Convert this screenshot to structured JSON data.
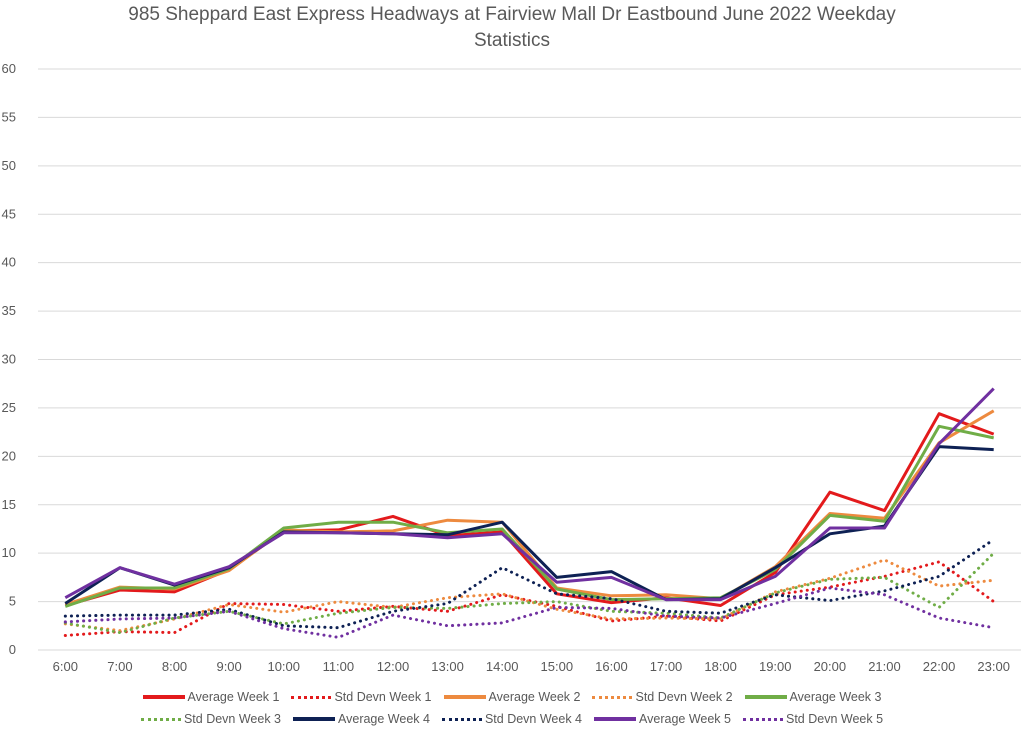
{
  "chart_data": {
    "type": "line",
    "title": "985 Sheppard East Express Headways at Fairview Mall Dr Eastbound June 2022 Weekday Statistics",
    "title_lines": [
      "985 Sheppard East Express Headways at Fairview Mall Dr Eastbound June 2022 Weekday",
      "Statistics"
    ],
    "xlabel": "",
    "ylabel": "",
    "ylim": [
      0,
      60
    ],
    "yticks": [
      0,
      5,
      10,
      15,
      20,
      25,
      30,
      35,
      40,
      45,
      50,
      55,
      60
    ],
    "grid": true,
    "legend_position": "bottom",
    "categories": [
      "6:00",
      "7:00",
      "8:00",
      "9:00",
      "10:00",
      "11:00",
      "12:00",
      "13:00",
      "14:00",
      "15:00",
      "16:00",
      "17:00",
      "18:00",
      "19:00",
      "20:00",
      "21:00",
      "22:00",
      "23:00"
    ],
    "series": [
      {
        "name": "Average Week 1",
        "color": "#e31a1c",
        "style": "solid",
        "values": [
          4.6,
          6.2,
          6.0,
          8.3,
          12.3,
          12.4,
          13.8,
          11.8,
          12.2,
          5.8,
          4.9,
          5.4,
          4.6,
          8.0,
          16.3,
          14.4,
          24.4,
          22.3
        ]
      },
      {
        "name": "Std Devn Week 1",
        "color": "#e31a1c",
        "style": "dotted",
        "values": [
          1.5,
          1.9,
          1.8,
          4.8,
          4.7,
          4.0,
          4.5,
          4.0,
          5.7,
          4.5,
          3.0,
          3.5,
          3.0,
          5.7,
          6.5,
          7.6,
          9.1,
          5.0
        ]
      },
      {
        "name": "Average Week 2",
        "color": "#ed8a3f",
        "style": "solid",
        "values": [
          4.7,
          6.5,
          6.3,
          8.2,
          12.4,
          12.2,
          12.3,
          13.4,
          13.2,
          6.4,
          5.6,
          5.7,
          5.3,
          8.6,
          14.1,
          13.6,
          21.4,
          24.7
        ]
      },
      {
        "name": "Std Devn Week 2",
        "color": "#ed8a3f",
        "style": "dotted",
        "values": [
          2.7,
          2.0,
          3.2,
          4.7,
          3.9,
          5.0,
          4.4,
          5.4,
          5.8,
          4.2,
          3.2,
          3.3,
          3.2,
          6.0,
          7.4,
          9.3,
          6.6,
          7.2
        ]
      },
      {
        "name": "Average Week 3",
        "color": "#70ad47",
        "style": "solid",
        "values": [
          4.5,
          6.4,
          6.4,
          8.4,
          12.6,
          13.2,
          13.2,
          12.1,
          12.5,
          6.3,
          5.2,
          5.3,
          5.4,
          8.3,
          13.9,
          13.3,
          23.1,
          21.9
        ]
      },
      {
        "name": "Std Devn Week 3",
        "color": "#70ad47",
        "style": "dotted",
        "values": [
          2.8,
          1.8,
          3.3,
          4.0,
          2.7,
          3.8,
          4.4,
          4.3,
          4.8,
          5.0,
          4.0,
          3.8,
          3.3,
          5.9,
          7.3,
          7.5,
          4.4,
          10.0
        ]
      },
      {
        "name": "Average Week 4",
        "color": "#0e2154",
        "style": "solid",
        "values": [
          4.8,
          8.5,
          6.7,
          8.5,
          12.2,
          12.1,
          12.0,
          11.9,
          13.2,
          7.5,
          8.1,
          5.2,
          5.3,
          8.5,
          12.0,
          12.8,
          21.0,
          20.7
        ]
      },
      {
        "name": "Std Devn Week 4",
        "color": "#0e2154",
        "style": "dotted",
        "values": [
          3.5,
          3.6,
          3.6,
          4.2,
          2.5,
          2.3,
          4.0,
          4.8,
          8.5,
          5.8,
          5.3,
          4.0,
          3.8,
          5.7,
          5.1,
          6.1,
          7.6,
          11.4
        ]
      },
      {
        "name": "Average Week 5",
        "color": "#7030a0",
        "style": "solid",
        "values": [
          5.4,
          8.5,
          6.8,
          8.6,
          12.1,
          12.1,
          12.0,
          11.6,
          12.0,
          7.0,
          7.5,
          5.2,
          5.2,
          7.6,
          12.6,
          12.6,
          21.3,
          27.0
        ]
      },
      {
        "name": "Std Devn Week 5",
        "color": "#7030a0",
        "style": "dotted",
        "values": [
          2.9,
          3.2,
          3.3,
          4.0,
          2.2,
          1.3,
          3.6,
          2.5,
          2.8,
          4.4,
          4.3,
          3.5,
          3.3,
          4.8,
          6.4,
          5.7,
          3.3,
          2.3
        ]
      }
    ]
  }
}
